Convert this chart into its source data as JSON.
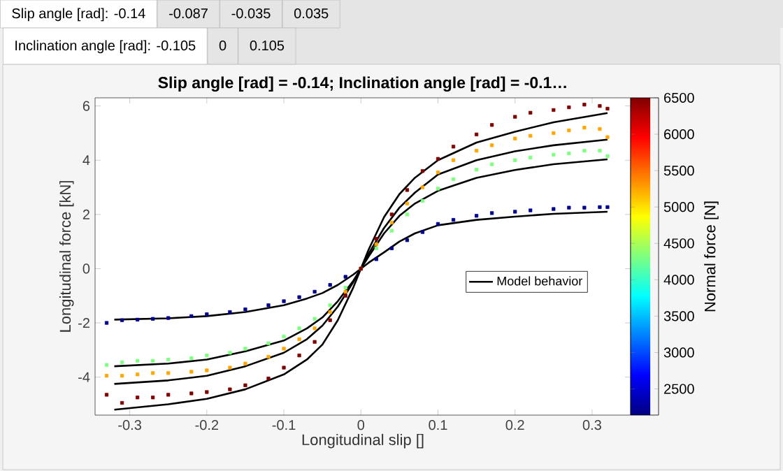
{
  "chart_data": {
    "type": "scatter",
    "title": "Slip angle [rad] = -0.14; Inclination angle [rad] = -0.1…",
    "xlabel": "Longitudinal slip []",
    "ylabel": "Longitudinal force [kN]",
    "clabel": "Normal force [N]",
    "annotations": [
      "Slip angle [rad]: -0.14",
      "-0.087",
      "-0.035",
      "0.035",
      "Inclination angle [rad]: -0.105",
      "0",
      "0.105"
    ],
    "xlim": [
      -0.345,
      0.35
    ],
    "ylim": [
      -5.4,
      6.3
    ],
    "xticks": [
      -0.3,
      -0.2,
      -0.1,
      0,
      0.1,
      0.2,
      0.3
    ],
    "yticks": [
      -4,
      -2,
      0,
      2,
      4,
      6
    ],
    "clim": [
      2140,
      6500
    ],
    "cticks": [
      2500,
      3000,
      3500,
      4000,
      4500,
      5000,
      5500,
      6000,
      6500
    ],
    "legend": "right",
    "series": [
      {
        "marker": "square",
        "x": [
          -0.33,
          -0.31,
          -0.29,
          -0.27,
          -0.25,
          -0.22,
          -0.2,
          -0.17,
          -0.15,
          -0.12,
          -0.1,
          -0.08,
          -0.06,
          -0.04,
          -0.02,
          0,
          0.02,
          0.04,
          0.06,
          0.08,
          0.1,
          0.12,
          0.15,
          0.17,
          0.2,
          0.22,
          0.25,
          0.27,
          0.29,
          0.31,
          0.32
        ],
        "values": [
          -2.0,
          -1.9,
          -1.88,
          -1.85,
          -1.82,
          -1.75,
          -1.68,
          -1.6,
          -1.5,
          -1.35,
          -1.2,
          -1.05,
          -0.85,
          -0.6,
          -0.3,
          0,
          0.35,
          0.75,
          1.05,
          1.35,
          1.65,
          1.8,
          1.95,
          2.05,
          2.1,
          2.15,
          2.2,
          2.25,
          2.25,
          2.27,
          2.27
        ],
        "cvalues": [
          2200,
          2200,
          2200,
          2200,
          2200,
          2200,
          2200,
          2200,
          2200,
          2200,
          2200,
          2200,
          2200,
          2200,
          2200,
          2200,
          2200,
          2200,
          2200,
          2200,
          2200,
          2200,
          2200,
          2200,
          2200,
          2200,
          2200,
          2200,
          2200,
          2200,
          2200
        ]
      },
      {
        "marker": "square",
        "x": [
          -0.33,
          -0.31,
          -0.29,
          -0.27,
          -0.25,
          -0.22,
          -0.2,
          -0.17,
          -0.15,
          -0.12,
          -0.1,
          -0.08,
          -0.06,
          -0.04,
          -0.02,
          0,
          0.02,
          0.04,
          0.06,
          0.08,
          0.1,
          0.12,
          0.15,
          0.17,
          0.2,
          0.22,
          0.25,
          0.27,
          0.29,
          0.31,
          0.32
        ],
        "values": [
          -3.55,
          -3.45,
          -3.4,
          -3.4,
          -3.35,
          -3.3,
          -3.2,
          -3.1,
          -2.95,
          -2.75,
          -2.5,
          -2.2,
          -1.85,
          -1.35,
          -0.7,
          0,
          0.75,
          1.4,
          2.0,
          2.5,
          2.95,
          3.3,
          3.65,
          3.85,
          4.0,
          4.1,
          4.2,
          4.25,
          4.35,
          4.35,
          4.15
        ],
        "cvalues": [
          4320,
          4320,
          4320,
          4320,
          4320,
          4320,
          4320,
          4320,
          4320,
          4320,
          4320,
          4320,
          4320,
          4320,
          4320,
          4320,
          4320,
          4320,
          4320,
          4320,
          4320,
          4320,
          4320,
          4320,
          4320,
          4320,
          4320,
          4320,
          4320,
          4320,
          4320
        ]
      },
      {
        "marker": "square",
        "x": [
          -0.33,
          -0.31,
          -0.29,
          -0.27,
          -0.25,
          -0.22,
          -0.2,
          -0.17,
          -0.15,
          -0.12,
          -0.1,
          -0.08,
          -0.06,
          -0.04,
          -0.02,
          0,
          0.02,
          0.04,
          0.06,
          0.08,
          0.1,
          0.12,
          0.15,
          0.17,
          0.2,
          0.22,
          0.25,
          0.27,
          0.29,
          0.31,
          0.32
        ],
        "values": [
          -3.95,
          -3.95,
          -3.9,
          -3.85,
          -3.85,
          -3.8,
          -3.75,
          -3.65,
          -3.5,
          -3.25,
          -2.95,
          -2.6,
          -2.2,
          -1.6,
          -0.85,
          0,
          0.9,
          1.7,
          2.4,
          3.0,
          3.55,
          4.0,
          4.35,
          4.55,
          4.8,
          4.9,
          5.0,
          5.1,
          5.2,
          5.15,
          4.85
        ],
        "cvalues": [
          5240,
          5240,
          5240,
          5240,
          5240,
          5240,
          5240,
          5240,
          5240,
          5240,
          5240,
          5240,
          5240,
          5240,
          5240,
          5240,
          5240,
          5240,
          5240,
          5240,
          5240,
          5240,
          5240,
          5240,
          5240,
          5240,
          5240,
          5240,
          5240,
          5240,
          5240
        ]
      },
      {
        "marker": "square",
        "x": [
          -0.33,
          -0.31,
          -0.29,
          -0.27,
          -0.25,
          -0.22,
          -0.2,
          -0.17,
          -0.15,
          -0.12,
          -0.1,
          -0.08,
          -0.06,
          -0.04,
          -0.02,
          0,
          0.02,
          0.04,
          0.06,
          0.08,
          0.1,
          0.12,
          0.15,
          0.17,
          0.2,
          0.22,
          0.25,
          0.27,
          0.29,
          0.31,
          0.32
        ],
        "values": [
          -4.65,
          -4.95,
          -4.75,
          -4.75,
          -4.65,
          -4.6,
          -4.55,
          -4.45,
          -4.3,
          -4.05,
          -3.65,
          -3.2,
          -2.7,
          -1.9,
          -1.0,
          0,
          1.1,
          2.0,
          2.9,
          3.6,
          4.05,
          4.5,
          4.95,
          5.3,
          5.6,
          5.75,
          5.85,
          5.95,
          6.05,
          6.0,
          5.9
        ],
        "cvalues": [
          6500,
          6500,
          6500,
          6500,
          6500,
          6500,
          6500,
          6500,
          6500,
          6500,
          6500,
          6500,
          6500,
          6500,
          6500,
          6500,
          6500,
          6500,
          6500,
          6500,
          6500,
          6500,
          6500,
          6500,
          6500,
          6500,
          6500,
          6500,
          6500,
          6500,
          6500
        ]
      },
      {
        "type": "line",
        "name": "Model behavior",
        "color": "#000000",
        "x": [
          -0.32,
          -0.25,
          -0.2,
          -0.15,
          -0.1,
          -0.07,
          -0.05,
          -0.03,
          -0.01,
          0,
          0.01,
          0.03,
          0.05,
          0.07,
          0.1,
          0.15,
          0.2,
          0.25,
          0.32
        ],
        "values": [
          -5.2,
          -5.0,
          -4.8,
          -4.45,
          -3.9,
          -3.35,
          -2.8,
          -1.9,
          -0.7,
          0,
          0.7,
          1.9,
          2.75,
          3.35,
          4.0,
          4.65,
          5.05,
          5.4,
          5.74
        ]
      },
      {
        "type": "line",
        "color": "#000000",
        "x": [
          -0.32,
          -0.25,
          -0.2,
          -0.15,
          -0.1,
          -0.07,
          -0.05,
          -0.03,
          -0.01,
          0,
          0.01,
          0.03,
          0.05,
          0.07,
          0.1,
          0.15,
          0.2,
          0.25,
          0.32
        ],
        "values": [
          -4.25,
          -4.12,
          -3.95,
          -3.6,
          -3.1,
          -2.6,
          -2.1,
          -1.4,
          -0.5,
          0,
          0.55,
          1.5,
          2.25,
          2.8,
          3.47,
          4.0,
          4.33,
          4.55,
          4.76
        ]
      },
      {
        "type": "line",
        "color": "#000000",
        "x": [
          -0.32,
          -0.25,
          -0.2,
          -0.15,
          -0.1,
          -0.07,
          -0.05,
          -0.03,
          -0.01,
          0,
          0.01,
          0.03,
          0.05,
          0.07,
          0.1,
          0.15,
          0.2,
          0.25,
          0.32
        ],
        "values": [
          -3.6,
          -3.5,
          -3.35,
          -3.05,
          -2.65,
          -2.2,
          -1.8,
          -1.2,
          -0.45,
          0,
          0.45,
          1.3,
          1.95,
          2.4,
          2.87,
          3.35,
          3.64,
          3.85,
          4.03
        ]
      },
      {
        "type": "line",
        "color": "#000000",
        "x": [
          -0.32,
          -0.25,
          -0.2,
          -0.15,
          -0.1,
          -0.07,
          -0.05,
          -0.03,
          -0.01,
          0,
          0.01,
          0.03,
          0.05,
          0.07,
          0.1,
          0.15,
          0.2,
          0.25,
          0.32
        ],
        "values": [
          -1.88,
          -1.83,
          -1.75,
          -1.6,
          -1.35,
          -1.1,
          -0.9,
          -0.6,
          -0.22,
          0,
          0.22,
          0.6,
          1.0,
          1.3,
          1.6,
          1.8,
          1.92,
          2.02,
          2.1
        ]
      }
    ]
  }
}
